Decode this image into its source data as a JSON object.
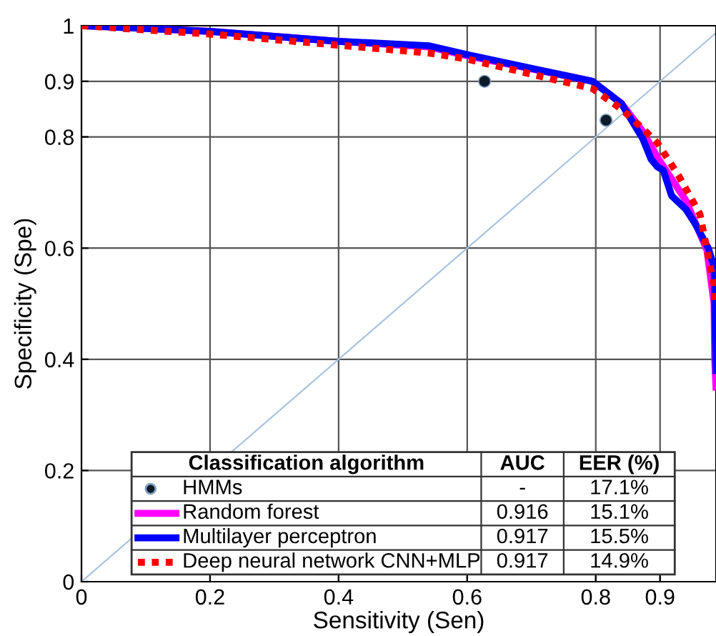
{
  "chart_data": {
    "type": "line",
    "xlabel": "Sensitivity (Sen)",
    "ylabel": "Specificity (Spe)",
    "legend_title": "Classification algorithm",
    "xlim": [
      0,
      0.987
    ],
    "ylim": [
      0,
      1
    ],
    "xticks": [
      0,
      0.2,
      0.4,
      0.6,
      0.8,
      0.9
    ],
    "yticks": [
      0,
      0.2,
      0.4,
      0.6,
      0.8,
      0.9,
      1
    ],
    "grid": true,
    "legend": "bottom",
    "series": [
      {
        "type": "line",
        "color": "#a9c4e0",
        "x": [
          0,
          0.987
        ],
        "values": [
          0,
          0.987
        ]
      },
      {
        "name": "HMMs",
        "type": "scatter",
        "marker": "circle",
        "color": "#0d1a2a",
        "x": [
          0.627,
          0.816
        ],
        "values": [
          0.9,
          0.83
        ]
      },
      {
        "name": "Random forest",
        "color": "#ff00ff",
        "line_style": "solid",
        "x": [
          0,
          0.2,
          0.4,
          0.54,
          0.6,
          0.795,
          0.84,
          0.873,
          0.896,
          0.94,
          0.973,
          0.984,
          0.985,
          0.987
        ],
        "values": [
          1,
          0.99,
          0.972,
          0.962,
          0.946,
          0.9,
          0.86,
          0.81,
          0.763,
          0.686,
          0.596,
          0.5,
          0.4,
          0.35
        ]
      },
      {
        "name": "Multilayer perceptron",
        "color": "#0000ff",
        "line_style": "solid",
        "x": [
          0,
          0.2,
          0.4,
          0.54,
          0.6,
          0.795,
          0.84,
          0.873,
          0.886,
          0.896,
          0.905,
          0.918,
          0.94,
          0.955,
          0.975,
          0.984,
          0.987
        ],
        "values": [
          1,
          0.99,
          0.972,
          0.964,
          0.948,
          0.9,
          0.86,
          0.797,
          0.76,
          0.746,
          0.74,
          0.694,
          0.67,
          0.643,
          0.6,
          0.566,
          0.38
        ]
      },
      {
        "name": "Deep neural network CNN+MLP",
        "color": "#ff0000",
        "line_style": "dotted",
        "x": [
          0,
          0.2,
          0.4,
          0.54,
          0.6,
          0.795,
          0.84,
          0.873,
          0.896,
          0.929,
          0.962,
          0.984,
          0.987
        ],
        "values": [
          1,
          0.985,
          0.965,
          0.951,
          0.94,
          0.887,
          0.85,
          0.815,
          0.789,
          0.73,
          0.661,
          0.532,
          0.5
        ]
      }
    ],
    "annotations": [
      "AUC",
      "EER (%)",
      "-",
      "17.1%",
      "0.916",
      "15.1%",
      "0.917",
      "15.5%",
      "0.917",
      "14.9%"
    ]
  }
}
